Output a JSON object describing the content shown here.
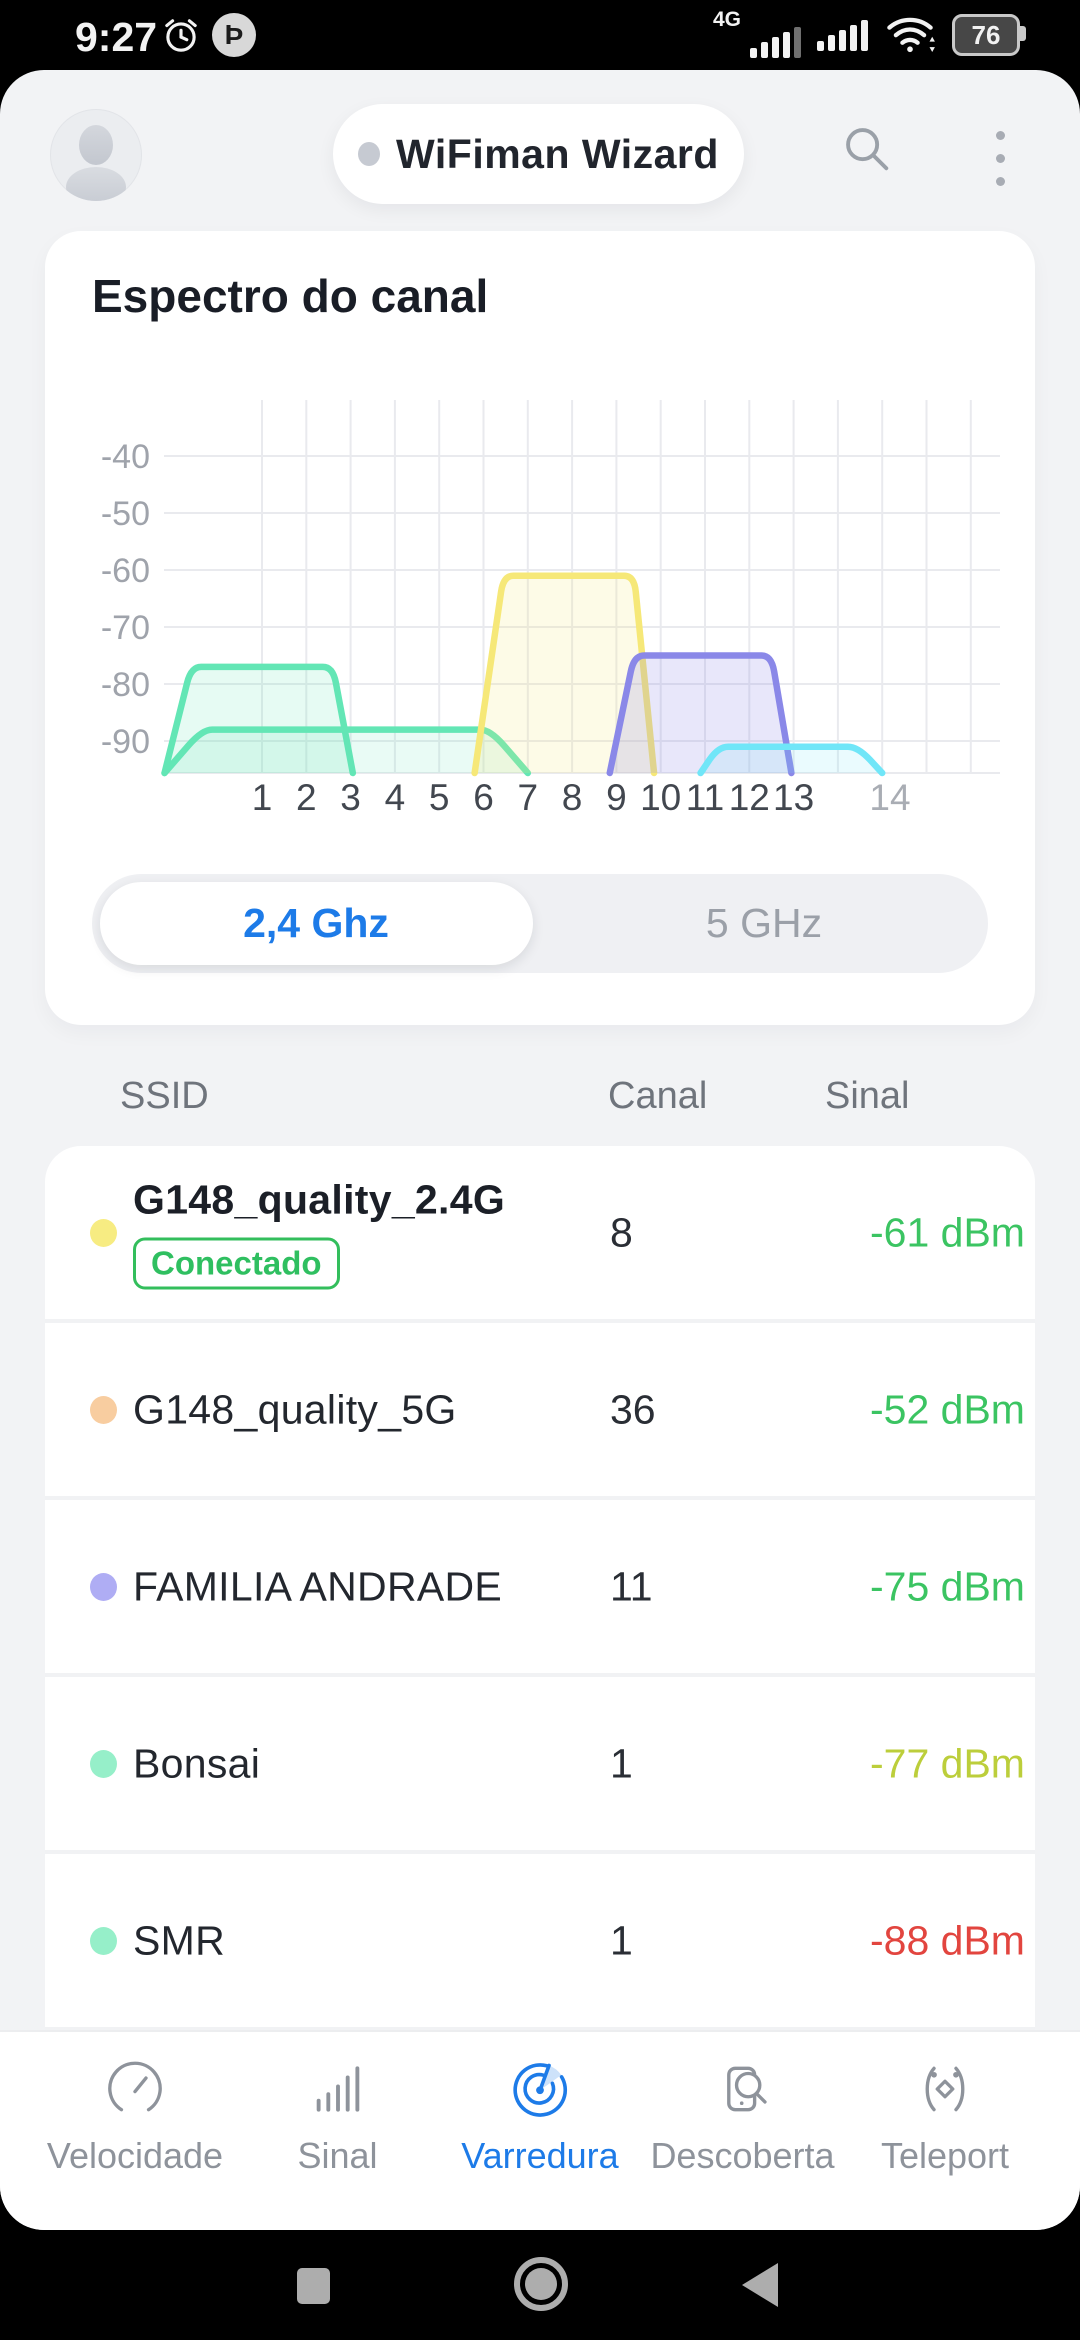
{
  "status_bar": {
    "time": "9:27",
    "network_type": "4G",
    "battery_percent": "76"
  },
  "header": {
    "app_title": "WiFiman Wizard"
  },
  "spectrum_card": {
    "title": "Espectro do canal",
    "band_toggle": {
      "options": [
        "2,4 Ghz",
        "5 GHz"
      ],
      "selected_index": 0
    }
  },
  "chart_data": {
    "type": "area",
    "title": "Espectro do canal",
    "x_tick_labels": [
      "1",
      "2",
      "3",
      "4",
      "5",
      "6",
      "7",
      "8",
      "9",
      "10",
      "11",
      "12",
      "13",
      "14"
    ],
    "y_ticks": [
      -40,
      -50,
      -60,
      -70,
      -80,
      -90
    ],
    "ylim": [
      -96,
      -30
    ],
    "y_unit": "dBm",
    "x_unit": "canal 2,4 GHz",
    "grid": true,
    "series": [
      {
        "name": "Bonsai",
        "channel": 1,
        "peak_dbm": -77,
        "base_span": [
          -1.2,
          3.05
        ],
        "top_span": [
          -0.6,
          2.6
        ],
        "color": "#63E6B5",
        "fill_alpha": 0.16
      },
      {
        "name": "SMR",
        "channel": 1,
        "peak_dbm": -88,
        "base_span": [
          -1.2,
          7.0
        ],
        "top_span": [
          -0.35,
          6.15
        ],
        "color": "#63E6B5",
        "fill_alpha": 0.14
      },
      {
        "name": "G148_quality_2.4G",
        "channel": 8,
        "peak_dbm": -61,
        "base_span": [
          5.8,
          9.85
        ],
        "top_span": [
          6.45,
          9.4
        ],
        "color": "#F6E878",
        "fill_alpha": 0.18
      },
      {
        "name": "FAMILIA ANDRADE",
        "channel": 11,
        "peak_dbm": -75,
        "base_span": [
          8.85,
          12.95
        ],
        "top_span": [
          9.4,
          12.5
        ],
        "color": "#8A88E8",
        "fill_alpha": 0.2
      },
      {
        "name": null,
        "peak_dbm": -91,
        "base_span": [
          10.9,
          15.0
        ],
        "top_span": [
          11.3,
          14.45
        ],
        "color": "#70E6F8",
        "fill_alpha": 0.15
      }
    ]
  },
  "network_table": {
    "headers": [
      "SSID",
      "Canal",
      "Sinal"
    ],
    "connected_badge": "Conectado",
    "rows": [
      {
        "ssid": "G148_quality_2.4G",
        "connected": true,
        "canal": "8",
        "sinal": "-61 dBm",
        "dot_color": "#F7EC82",
        "sinal_color": "#3BC462"
      },
      {
        "ssid": "G148_quality_5G",
        "connected": false,
        "canal": "36",
        "sinal": "-52 dBm",
        "dot_color": "#F8CDA0",
        "sinal_color": "#3BC462"
      },
      {
        "ssid": "FAMILIA ANDRADE",
        "connected": false,
        "canal": "11",
        "sinal": "-75 dBm",
        "dot_color": "#AFADF4",
        "sinal_color": "#3BC462"
      },
      {
        "ssid": "Bonsai",
        "connected": false,
        "canal": "1",
        "sinal": "-77 dBm",
        "dot_color": "#96EFC9",
        "sinal_color": "#BCCE3B"
      },
      {
        "ssid": "SMR",
        "connected": false,
        "canal": "1",
        "sinal": "-88 dBm",
        "dot_color": "#96EFC9",
        "sinal_color": "#E2453F"
      }
    ]
  },
  "bottom_nav": {
    "active_index": 2,
    "active_color": "#1D7BE8",
    "items": [
      {
        "label": "Velocidade",
        "icon": "speedometer-icon"
      },
      {
        "label": "Sinal",
        "icon": "signal-bars-icon"
      },
      {
        "label": "Varredura",
        "icon": "radar-icon"
      },
      {
        "label": "Descoberta",
        "icon": "device-search-icon"
      },
      {
        "label": "Teleport",
        "icon": "teleport-icon"
      }
    ]
  }
}
